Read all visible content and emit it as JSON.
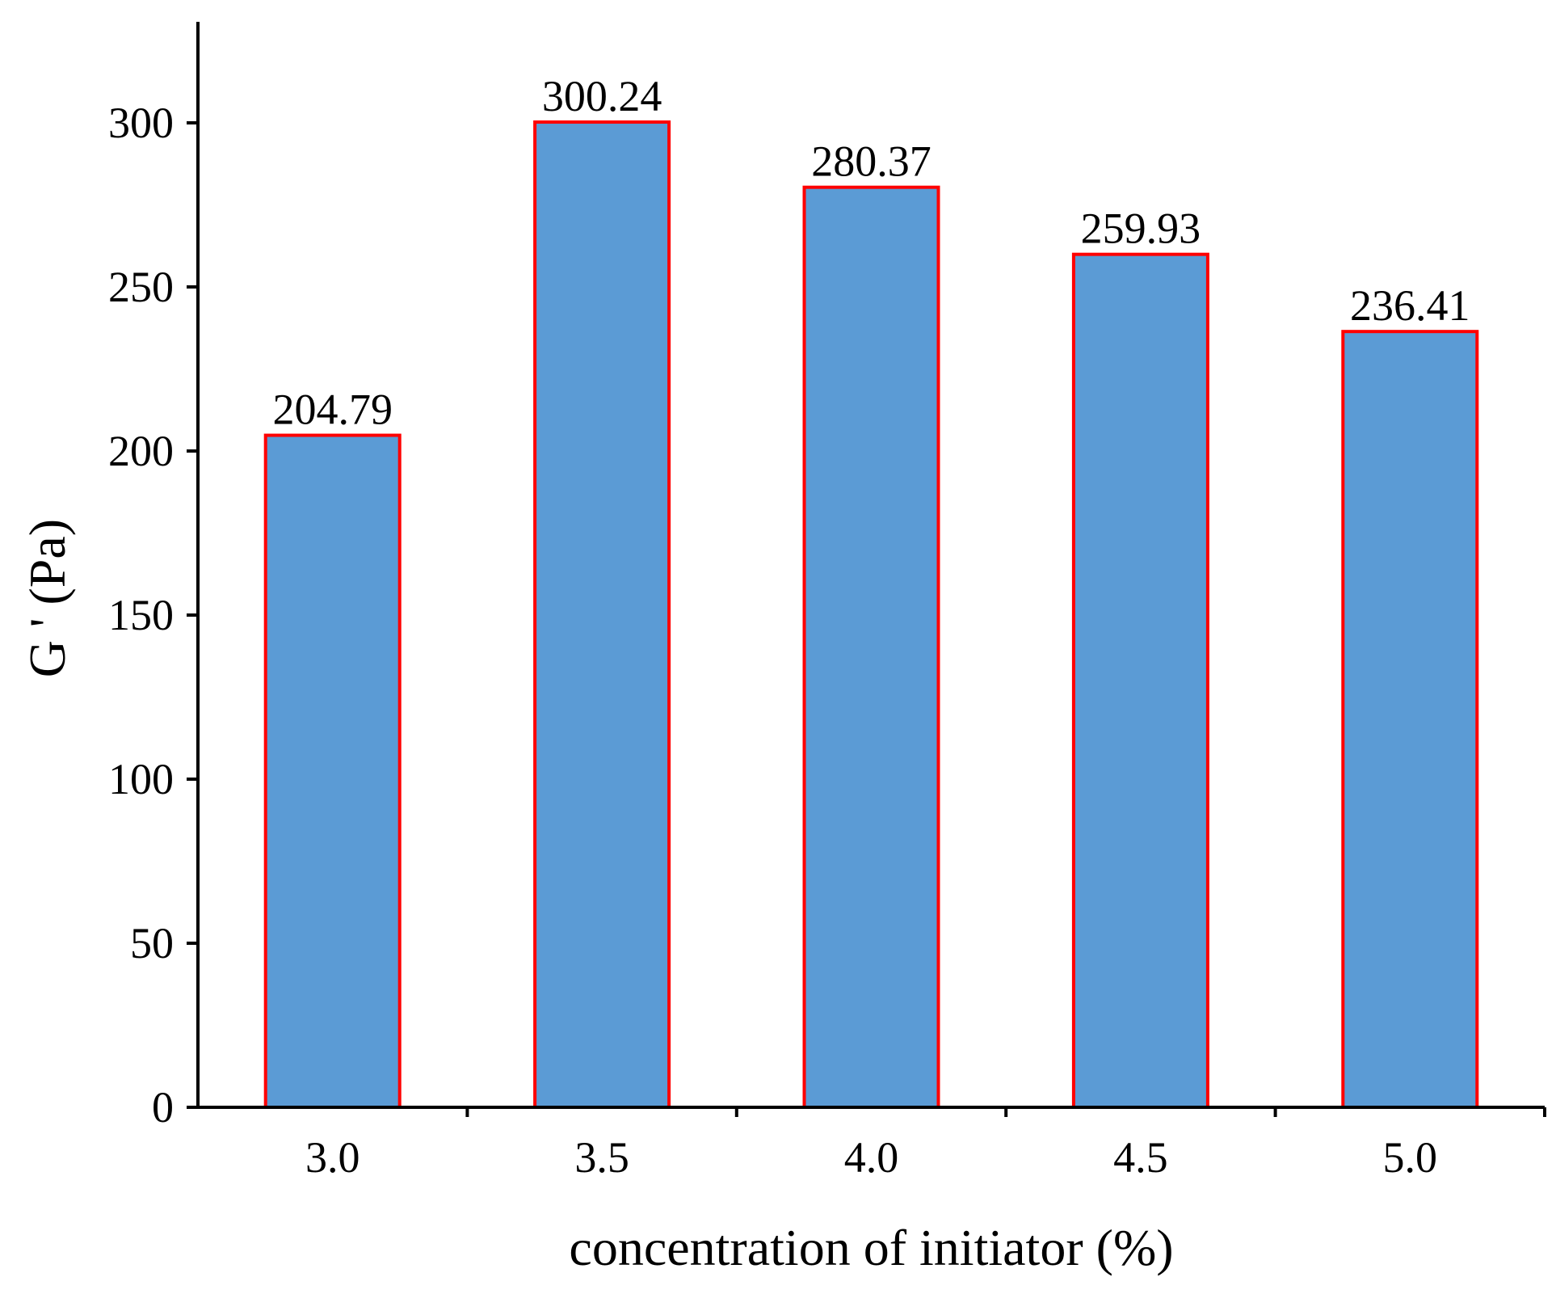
{
  "chart_data": {
    "type": "bar",
    "categories": [
      "3.0",
      "3.5",
      "4.0",
      "4.5",
      "5.0"
    ],
    "values": [
      204.79,
      300.24,
      280.37,
      259.93,
      236.41
    ],
    "value_labels": [
      "204.79",
      "300.24",
      "280.37",
      "259.93",
      "236.41"
    ],
    "title": "",
    "xlabel": "concentration of initiator (%)",
    "ylabel": "G ' (Pa)",
    "ylim": [
      0,
      330
    ],
    "yticks": [
      0,
      50,
      100,
      150,
      200,
      250,
      300
    ],
    "ytick_labels": [
      "0",
      "50",
      "100",
      "150",
      "200",
      "250",
      "300"
    ],
    "grid": false,
    "colors": {
      "bar_fill": "#5b9bd5",
      "bar_edge": "#ff0000",
      "axis": "#000000"
    }
  }
}
